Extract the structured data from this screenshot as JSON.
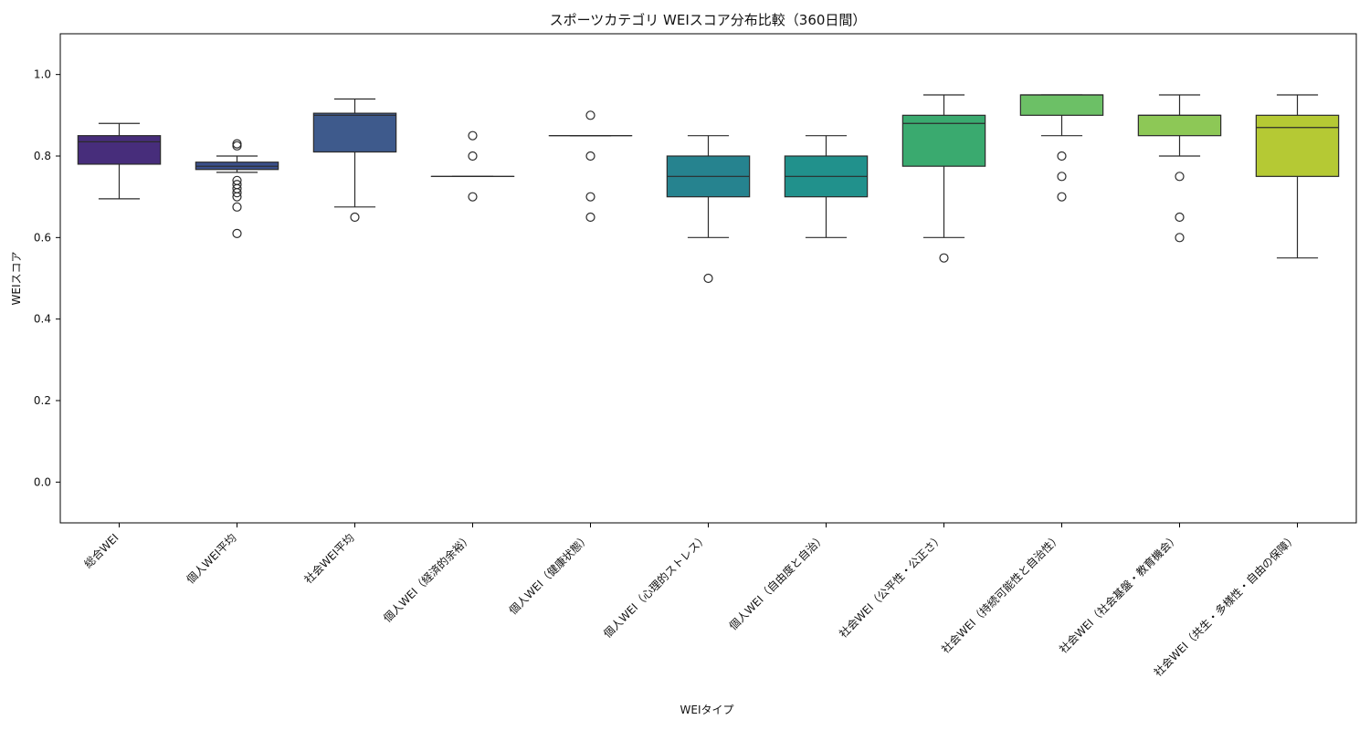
{
  "chart_data": {
    "type": "box",
    "title": "スポーツカテゴリ WEIスコア分布比較（360日間）",
    "xlabel": "WEIタイプ",
    "ylabel": "WEIスコア",
    "ylim": [
      -0.1,
      1.1
    ],
    "yticks": [
      0.0,
      0.2,
      0.4,
      0.6,
      0.8,
      1.0
    ],
    "ytick_labels": [
      "0.0",
      "0.2",
      "0.4",
      "0.6",
      "0.8",
      "1.0"
    ],
    "grid": false,
    "legend": "none",
    "categories": [
      "総合WEI",
      "個人WEI平均",
      "社会WEI平均",
      "個人WEI（経済的余裕）",
      "個人WEI（健康状態）",
      "個人WEI（心理的ストレス）",
      "個人WEI（自由度と自治）",
      "社会WEI（公平性・公正さ）",
      "社会WEI（持続可能性と自治性）",
      "社会WEI（社会基盤・教育機会）",
      "社会WEI（共生・多様性・自由の保障）"
    ],
    "boxes": [
      {
        "whislo": 0.695,
        "q1": 0.78,
        "med": 0.835,
        "q3": 0.85,
        "whishi": 0.88,
        "fliers": [],
        "color": "#472d7b"
      },
      {
        "whislo": 0.76,
        "q1": 0.767,
        "med": 0.775,
        "q3": 0.785,
        "whishi": 0.8,
        "fliers": [
          0.61,
          0.675,
          0.7,
          0.71,
          0.72,
          0.73,
          0.74,
          0.825,
          0.83
        ],
        "color": "#3b4f8a"
      },
      {
        "whislo": 0.675,
        "q1": 0.81,
        "med": 0.9,
        "q3": 0.905,
        "whishi": 0.94,
        "fliers": [
          0.65
        ],
        "color": "#3e5a8c"
      },
      {
        "whislo": 0.75,
        "q1": 0.75,
        "med": 0.75,
        "q3": 0.75,
        "whishi": 0.75,
        "fliers": [
          0.7,
          0.8,
          0.85
        ],
        "color": "#2f6c8e"
      },
      {
        "whislo": 0.85,
        "q1": 0.85,
        "med": 0.85,
        "q3": 0.85,
        "whishi": 0.85,
        "fliers": [
          0.65,
          0.7,
          0.8,
          0.9
        ],
        "color": "#2a788e"
      },
      {
        "whislo": 0.6,
        "q1": 0.7,
        "med": 0.75,
        "q3": 0.8,
        "whishi": 0.85,
        "fliers": [
          0.5
        ],
        "color": "#26838f"
      },
      {
        "whislo": 0.6,
        "q1": 0.7,
        "med": 0.75,
        "q3": 0.8,
        "whishi": 0.85,
        "fliers": [],
        "color": "#21918c"
      },
      {
        "whislo": 0.6,
        "q1": 0.775,
        "med": 0.88,
        "q3": 0.9,
        "whishi": 0.95,
        "fliers": [
          0.55
        ],
        "color": "#3aaa6f"
      },
      {
        "whislo": 0.85,
        "q1": 0.9,
        "med": 0.95,
        "q3": 0.95,
        "whishi": 0.95,
        "fliers": [
          0.7,
          0.75,
          0.8
        ],
        "color": "#6cc066"
      },
      {
        "whislo": 0.8,
        "q1": 0.85,
        "med": 0.9,
        "q3": 0.9,
        "whishi": 0.95,
        "fliers": [
          0.6,
          0.65,
          0.75
        ],
        "color": "#8dc856"
      },
      {
        "whislo": 0.55,
        "q1": 0.75,
        "med": 0.87,
        "q3": 0.9,
        "whishi": 0.95,
        "fliers": [],
        "color": "#b5c934"
      }
    ]
  }
}
